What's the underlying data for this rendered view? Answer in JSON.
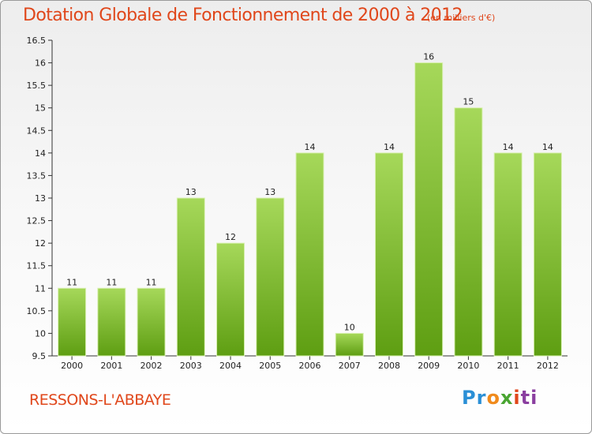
{
  "chart_data": {
    "type": "bar",
    "title": "Dotation Globale de Fonctionnement de 2000 à 2012",
    "unit": "(en milliers d'€)",
    "categories": [
      "2000",
      "2001",
      "2002",
      "2003",
      "2004",
      "2005",
      "2006",
      "2007",
      "2008",
      "2009",
      "2010",
      "2011",
      "2012"
    ],
    "values": [
      11,
      11,
      11,
      13,
      12,
      13,
      14,
      10,
      14,
      16,
      15,
      14,
      14
    ],
    "data_labels": [
      "11",
      "11",
      "11",
      "13",
      "12",
      "13",
      "14",
      "10",
      "14",
      "16",
      "15",
      "14",
      "14"
    ],
    "ylim": [
      9.5,
      16.5
    ],
    "yticks": [
      "9.5",
      "10",
      "10.5",
      "11",
      "11.5",
      "12",
      "12.5",
      "13",
      "13.5",
      "14",
      "14.5",
      "15",
      "15.5",
      "16",
      "16.5"
    ],
    "grid": false,
    "colors": {
      "bar_top": "#a6d85a",
      "bar_bottom": "#5e9e12",
      "bar_edge": "#d8f0b0",
      "text": "#e0471b"
    }
  },
  "footer": {
    "commune": "RESSONS-L'ABBAYE",
    "logo": [
      "Pr",
      "o",
      "x",
      "i",
      "ti"
    ]
  }
}
